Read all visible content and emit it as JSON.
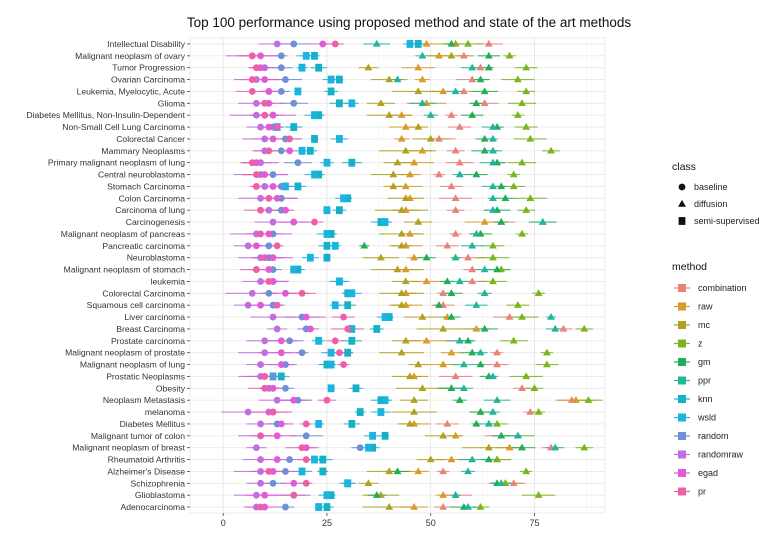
{
  "chart_data": {
    "type": "scatter",
    "title": "Top 100 performance using proposed method and state of the art methods",
    "xlabel": "",
    "ylabel": "",
    "xlim": [
      -8,
      92
    ],
    "xticks": [
      0,
      25,
      50,
      75
    ],
    "grid": true,
    "legend_position": "right",
    "categories": [
      "Intellectual Disability",
      "Malignant neoplasm of ovary",
      "Tumor Progression",
      "Ovarian Carcinoma",
      "Leukemia, Myelocytic, Acute",
      "Glioma",
      "Diabetes Mellitus, Non-Insulin-Dependent",
      "Non-Small Cell Lung Carcinoma",
      "Colorectal Cancer",
      "Mammary Neoplasms",
      "Primary malignant neoplasm of lung",
      "Central neuroblastoma",
      "Stomach Carcinoma",
      "Colon Carcinoma",
      "Carcinoma of lung",
      "Carcinogenesis",
      "Malignant neoplasm of pancreas",
      "Pancreatic carcinoma",
      "Neuroblastoma",
      "Malignant neoplasm of stomach",
      "leukemia",
      "Colorectal Carcinoma",
      "Squamous cell carcinoma",
      "Liver carcinoma",
      "Breast Carcinoma",
      "Prostate carcinoma",
      "Malignant neoplasm of prostate",
      "Malignant neoplasm of lung",
      "Prostatic Neoplasms",
      "Obesity",
      "Neoplasm Metastasis",
      "melanoma",
      "Diabetes Mellitus",
      "Malignant tumor of colon",
      "Malignant neoplasm of breast",
      "Rheumatoid Arthritis",
      "Alzheimer's Disease",
      "Schizophrenia",
      "Glioblastoma",
      "Adenocarcinoma"
    ],
    "class_legend": {
      "title": "class",
      "entries": [
        {
          "name": "baseline",
          "shape": "circle"
        },
        {
          "name": "diffusion",
          "shape": "triangle"
        },
        {
          "name": "semi-supervised",
          "shape": "square"
        }
      ]
    },
    "series": [
      {
        "name": "combination",
        "class": "diffusion",
        "color": "#e8837c",
        "values": [
          64,
          58,
          62,
          60,
          58,
          63,
          55,
          57,
          52,
          56,
          57,
          52,
          55,
          56,
          56,
          67,
          56,
          54,
          59,
          60,
          60,
          53,
          53,
          69,
          82,
          57,
          66,
          66,
          56,
          72,
          84,
          74,
          54,
          67,
          79,
          66,
          53,
          70,
          56,
          53
        ]
      },
      {
        "name": "raw",
        "class": "diffusion",
        "color": "#d99a2a",
        "values": [
          49,
          52,
          47,
          48,
          53,
          49,
          43,
          44,
          43,
          48,
          46,
          45,
          44,
          45,
          44,
          63,
          45,
          44,
          46,
          44,
          49,
          44,
          44,
          54,
          61,
          49,
          55,
          53,
          46,
          55,
          85,
          62,
          46,
          56,
          69,
          55,
          47,
          68,
          53,
          46
        ]
      },
      {
        "name": "mc",
        "class": "diffusion",
        "color": "#b0a11f",
        "values": [
          56,
          55,
          35,
          40,
          47,
          38,
          40,
          47,
          50,
          44,
          42,
          41,
          41,
          44,
          43,
          47,
          43,
          43,
          38,
          42,
          44,
          43,
          43,
          48,
          53,
          44,
          43,
          47,
          45,
          48,
          46,
          46,
          45,
          53,
          64,
          50,
          40,
          35,
          38,
          40
        ]
      },
      {
        "name": "z",
        "class": "diffusion",
        "color": "#7ab51d",
        "values": [
          59,
          69,
          73,
          71,
          73,
          72,
          71,
          73,
          74,
          79,
          72,
          70,
          70,
          74,
          73,
          77,
          72,
          65,
          65,
          67,
          65,
          76,
          71,
          72,
          87,
          70,
          78,
          78,
          73,
          75,
          88,
          76,
          66,
          71,
          87,
          66,
          73,
          68,
          76,
          62
        ]
      },
      {
        "name": "gm",
        "class": "diffusion",
        "color": "#1fae55",
        "values": [
          55,
          64,
          64,
          62,
          63,
          61,
          60,
          66,
          63,
          63,
          66,
          61,
          67,
          68,
          66,
          67,
          62,
          34,
          49,
          66,
          54,
          55,
          52,
          55,
          63,
          59,
          60,
          62,
          64,
          55,
          57,
          62,
          61,
          67,
          72,
          64,
          42,
          66,
          37,
          58
        ]
      },
      {
        "name": "ppr",
        "class": "diffusion",
        "color": "#21b59a",
        "values": [
          37,
          48,
          60,
          42,
          56,
          48,
          50,
          65,
          65,
          65,
          65,
          57,
          65,
          65,
          65,
          77,
          61,
          60,
          56,
          63,
          57,
          63,
          61,
          79,
          80,
          57,
          62,
          58,
          65,
          58,
          66,
          65,
          64,
          71,
          80,
          60,
          59,
          67,
          56,
          59
        ]
      },
      {
        "name": "knn",
        "class": "semi-supervised",
        "color": "#16b0c9",
        "values": [
          47,
          22,
          23,
          28,
          26,
          28,
          23,
          17,
          22,
          21,
          31,
          23,
          18,
          30,
          28,
          38,
          26,
          25,
          25,
          18,
          28,
          30,
          30,
          40,
          37,
          31,
          30,
          25,
          14,
          32,
          38,
          33,
          31,
          39,
          36,
          24,
          24,
          30,
          26,
          25
        ]
      },
      {
        "name": "wsld",
        "class": "semi-supervised",
        "color": "#1ab4df",
        "values": [
          45,
          20,
          19,
          26,
          18,
          31,
          22,
          13,
          28,
          19,
          25,
          22,
          15,
          29,
          25,
          39,
          25,
          27,
          21,
          17,
          28,
          31,
          27,
          39,
          31,
          23,
          26,
          26,
          12,
          26,
          39,
          38,
          23,
          36,
          35,
          22,
          19,
          30,
          25,
          23
        ]
      },
      {
        "name": "random",
        "class": "baseline",
        "color": "#6f8fd6",
        "values": [
          17,
          14,
          14,
          15,
          14,
          17,
          12,
          12,
          15,
          14,
          18,
          12,
          14,
          14,
          14,
          17,
          12,
          11,
          11,
          12,
          12,
          11,
          12,
          19,
          20,
          16,
          19,
          15,
          12,
          15,
          18,
          12,
          13,
          20,
          33,
          16,
          15,
          12,
          17,
          15
        ]
      },
      {
        "name": "randomraw",
        "class": "baseline",
        "color": "#c06ee0",
        "values": [
          13,
          7,
          10,
          8,
          11,
          8,
          8,
          9,
          10,
          10,
          9,
          9,
          10,
          9,
          11,
          12,
          8,
          6,
          9,
          8,
          9,
          7,
          6,
          12,
          13,
          10,
          10,
          9,
          9,
          11,
          13,
          6,
          9,
          9,
          8,
          9,
          9,
          9,
          8,
          8
        ]
      },
      {
        "name": "egad",
        "class": "baseline",
        "color": "#e05bd4",
        "values": [
          24,
          9,
          9,
          10,
          11,
          11,
          12,
          11,
          12,
          16,
          8,
          10,
          12,
          13,
          15,
          17,
          11,
          8,
          12,
          11,
          12,
          15,
          9,
          20,
          21,
          14,
          14,
          14,
          10,
          12,
          17,
          11,
          14,
          13,
          20,
          13,
          12,
          17,
          10,
          10
        ]
      },
      {
        "name": "pr",
        "class": "baseline",
        "color": "#ef5fa8",
        "values": [
          27,
          7,
          8,
          7,
          7,
          10,
          10,
          13,
          16,
          11,
          7,
          8,
          8,
          11,
          9,
          22,
          9,
          13,
          10,
          8,
          11,
          19,
          13,
          29,
          30,
          27,
          28,
          29,
          10,
          10,
          25,
          12,
          20,
          9,
          19,
          20,
          11,
          20,
          17,
          9
        ]
      }
    ]
  },
  "legend_method": {
    "title": "method"
  }
}
